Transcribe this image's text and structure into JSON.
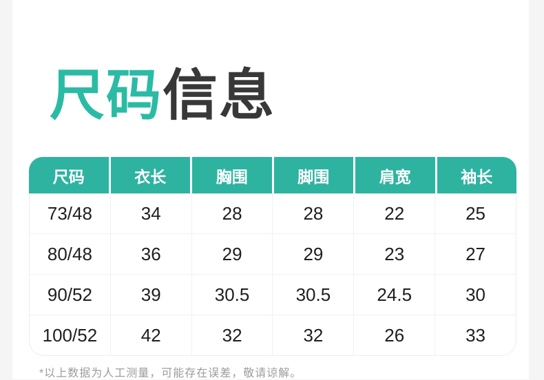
{
  "title": {
    "part_teal": "尺码",
    "part_dark": "信息"
  },
  "colors": {
    "accent_title_teal": "#2bbba5",
    "accent_header_teal": "#2eb3a1",
    "title_dark": "#383838",
    "body_text": "#1e1e1e",
    "footnote_gray": "#9c9c9c",
    "page_gutter": "#f4f5f4"
  },
  "size_table": {
    "headers": [
      "尺码",
      "衣长",
      "胸围",
      "脚围",
      "肩宽",
      "袖长"
    ],
    "rows": [
      [
        "73/48",
        "34",
        "28",
        "28",
        "22",
        "25"
      ],
      [
        "80/48",
        "36",
        "29",
        "29",
        "23",
        "27"
      ],
      [
        "90/52",
        "39",
        "30.5",
        "30.5",
        "24.5",
        "30"
      ],
      [
        "100/52",
        "42",
        "32",
        "32",
        "26",
        "33"
      ]
    ]
  },
  "footnote": "*以上数据为人工测量，可能存在误差，敬请谅解。"
}
